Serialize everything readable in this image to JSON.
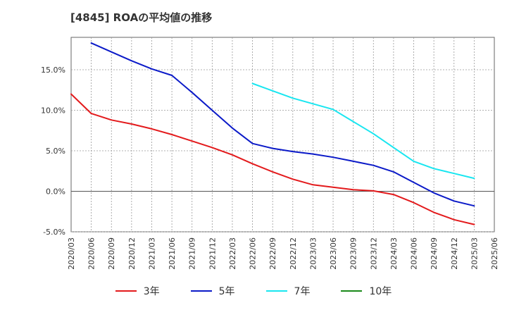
{
  "page_title": "[4845]  ROAの平均値の推移",
  "chart_data": {
    "type": "line",
    "title": "[4845]  ROAの平均値の推移",
    "xlabel": "",
    "ylabel": "",
    "ylim": [
      -5,
      19
    ],
    "yticks": [
      -5,
      0,
      5,
      10,
      15
    ],
    "ytick_labels": [
      "-5.0%",
      "0.0%",
      "5.0%",
      "10.0%",
      "15.0%"
    ],
    "categories": [
      "2020/03",
      "2020/06",
      "2020/09",
      "2020/12",
      "2021/03",
      "2021/06",
      "2021/09",
      "2021/12",
      "2022/03",
      "2022/06",
      "2022/09",
      "2022/12",
      "2023/03",
      "2023/06",
      "2023/09",
      "2023/12",
      "2024/03",
      "2024/06",
      "2024/09",
      "2024/12",
      "2025/03",
      "2025/06"
    ],
    "grid": true,
    "legend_position": "bottom",
    "series": [
      {
        "name": "3年",
        "color": "#e31a1c",
        "values": [
          12.0,
          9.6,
          8.8,
          8.3,
          7.7,
          7.0,
          6.2,
          5.4,
          4.5,
          3.4,
          2.4,
          1.5,
          0.8,
          0.5,
          0.2,
          0.05,
          -0.4,
          -1.4,
          -2.6,
          -3.5,
          -4.1,
          null
        ]
      },
      {
        "name": "5年",
        "color": "#0b1ac8",
        "values": [
          null,
          18.3,
          17.2,
          16.1,
          15.1,
          14.3,
          12.2,
          10.0,
          7.8,
          5.9,
          5.3,
          4.9,
          4.6,
          4.2,
          3.7,
          3.2,
          2.4,
          1.1,
          -0.2,
          -1.2,
          -1.8,
          null
        ]
      },
      {
        "name": "7年",
        "color": "#19e6f0",
        "values": [
          null,
          null,
          null,
          null,
          null,
          null,
          null,
          null,
          null,
          13.3,
          12.4,
          11.5,
          10.8,
          10.1,
          8.6,
          7.1,
          5.4,
          3.7,
          2.8,
          2.2,
          1.6,
          null
        ]
      },
      {
        "name": "10年",
        "color": "#1a8a1a",
        "values": [
          null,
          null,
          null,
          null,
          null,
          null,
          null,
          null,
          null,
          null,
          null,
          null,
          null,
          null,
          null,
          null,
          null,
          null,
          null,
          null,
          null,
          null
        ]
      }
    ]
  }
}
